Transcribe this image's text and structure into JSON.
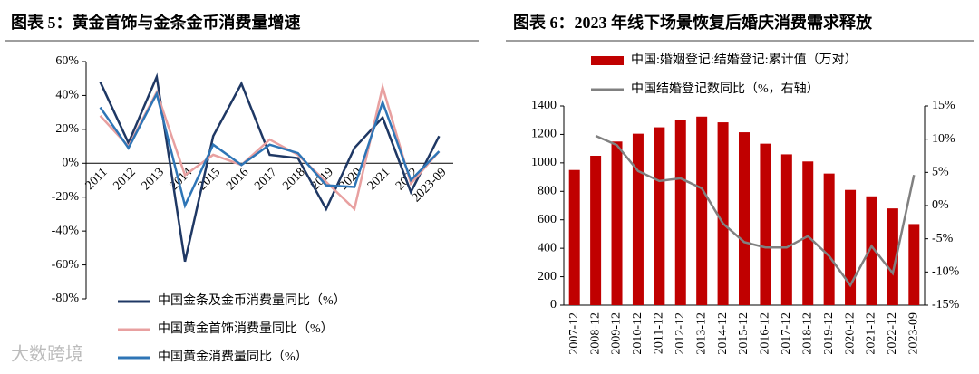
{
  "chart_data": [
    {
      "type": "line",
      "title": "图表 5：黄金首饰与金条金币消费量增速",
      "categories": [
        "2011",
        "2012",
        "2013",
        "2014",
        "2015",
        "2016",
        "2017",
        "2018",
        "2019",
        "2020",
        "2021",
        "2022",
        "2023-09"
      ],
      "series": [
        {
          "name": "中国金条及金币消费量同比（%）",
          "color": "#1f3864",
          "values": [
            48,
            12,
            51,
            -58,
            16,
            47,
            5,
            3,
            -27,
            9,
            27,
            -17,
            16
          ]
        },
        {
          "name": "中国黄金首饰消费量同比（%）",
          "color": "#e8a0a0",
          "values": [
            28,
            10,
            42,
            -7,
            5,
            -1,
            14,
            5,
            -11,
            -27,
            45,
            -12,
            7
          ]
        },
        {
          "name": "中国黄金消费量同比（%）",
          "color": "#2e75b6",
          "values": [
            33,
            9,
            41,
            -25,
            11,
            -1,
            11,
            6,
            -13,
            -14,
            36,
            -10,
            7
          ]
        }
      ],
      "ylim": [
        -80,
        60
      ],
      "yticks": [
        {
          "value": -80,
          "label": "-80%"
        },
        {
          "value": -60,
          "label": "-60%"
        },
        {
          "value": -40,
          "label": "-40%"
        },
        {
          "value": -20,
          "label": "-20%"
        },
        {
          "value": 0,
          "label": "0%"
        },
        {
          "value": 20,
          "label": "20%"
        },
        {
          "value": 40,
          "label": "40%"
        },
        {
          "value": 60,
          "label": "60%"
        }
      ],
      "grid": false
    },
    {
      "type": "combo",
      "title": "图表 6：2023 年线下场景恢复后婚庆消费需求释放",
      "categories": [
        "2007-12",
        "2008-12",
        "2009-12",
        "2010-12",
        "2011-12",
        "2012-12",
        "2013-12",
        "2014-12",
        "2015-12",
        "2016-12",
        "2017-12",
        "2018-12",
        "2019-12",
        "2020-12",
        "2021-12",
        "2022-12",
        "2023-09"
      ],
      "series": [
        {
          "name": "中国:婚姻登记:结婚登记:累计值（万对）",
          "color": "#c00000",
          "type": "bar",
          "values": [
            950,
            1050,
            1150,
            1205,
            1250,
            1300,
            1325,
            1285,
            1215,
            1135,
            1060,
            1010,
            925,
            810,
            765,
            680,
            570
          ]
        },
        {
          "name": "中国结婚登记数同比（%，右轴）",
          "color": "#808080",
          "type": "line",
          "axis": "y2",
          "values": [
            null,
            10.5,
            9.1,
            5.2,
            3.7,
            4.1,
            2.6,
            -2.7,
            -5.5,
            -6.3,
            -6.3,
            -4.6,
            -7.6,
            -12,
            -6.1,
            -10.2,
            4.6
          ]
        }
      ],
      "ylim": [
        0,
        1400
      ],
      "yticks": [
        0,
        200,
        400,
        600,
        800,
        1000,
        1200,
        1400
      ],
      "y2lim": [
        -15,
        15
      ],
      "y2ticks": [
        {
          "value": -15,
          "label": "-15%"
        },
        {
          "value": -10,
          "label": "-10%"
        },
        {
          "value": -5,
          "label": "-5%"
        },
        {
          "value": 0,
          "label": "0%"
        },
        {
          "value": 5,
          "label": "5%"
        },
        {
          "value": 10,
          "label": "10%"
        },
        {
          "value": 15,
          "label": "15%"
        }
      ],
      "grid": false
    }
  ],
  "watermark": "大数跨境"
}
